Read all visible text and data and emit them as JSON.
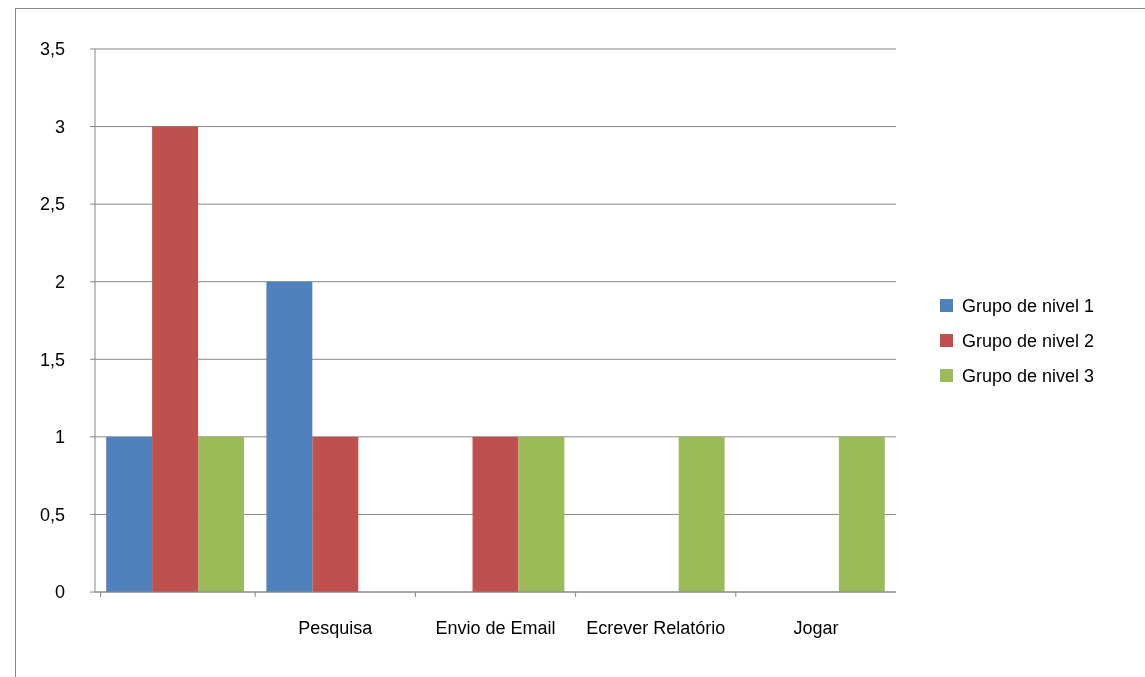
{
  "chart_data": {
    "type": "bar",
    "categories": [
      null,
      "Pesquisa",
      "Envio de Email",
      "Ecrever Relatório",
      "Jogar"
    ],
    "series": [
      {
        "name": "Grupo de nivel 1",
        "color": "#4f81bd",
        "values": [
          1,
          2,
          0,
          0,
          0
        ]
      },
      {
        "name": "Grupo de nivel 2",
        "color": "#c0504d",
        "values": [
          3,
          1,
          1,
          0,
          0
        ]
      },
      {
        "name": "Grupo de nivel 3",
        "color": "#9bbb59",
        "values": [
          1,
          0,
          1,
          1,
          1
        ]
      }
    ],
    "ylim": [
      0,
      3.5
    ],
    "yticks": [
      0,
      {
        "value": 0.5,
        "label": "0,5"
      },
      1,
      {
        "value": 1.5,
        "label": "1,5"
      },
      2,
      {
        "value": 2.5,
        "label": "2,5"
      },
      3,
      {
        "value": 3.5,
        "label": "3,5"
      }
    ],
    "grid": "y",
    "legend": "right"
  }
}
